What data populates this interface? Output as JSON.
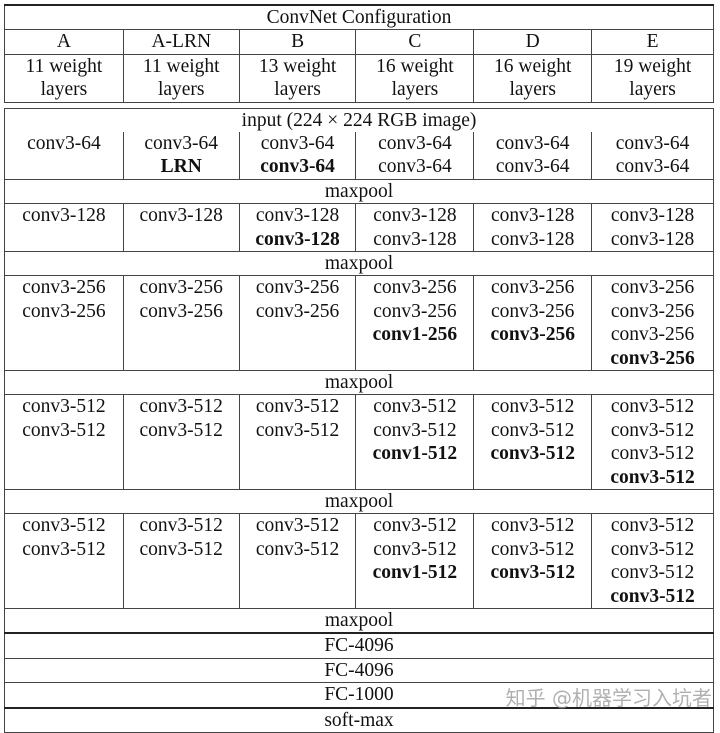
{
  "title": "ConvNet Configuration",
  "columns": [
    "A",
    "A-LRN",
    "B",
    "C",
    "D",
    "E"
  ],
  "depths": [
    [
      "11 weight",
      "layers"
    ],
    [
      "11 weight",
      "layers"
    ],
    [
      "13 weight",
      "layers"
    ],
    [
      "16 weight",
      "layers"
    ],
    [
      "16 weight",
      "layers"
    ],
    [
      "19 weight",
      "layers"
    ]
  ],
  "input": "input (224 × 224 RGB image)",
  "blocks": [
    {
      "lines": 2,
      "cells": [
        [
          {
            "t": "conv3-64"
          }
        ],
        [
          {
            "t": "conv3-64"
          },
          {
            "t": "LRN",
            "b": true
          }
        ],
        [
          {
            "t": "conv3-64"
          },
          {
            "t": "conv3-64",
            "b": true
          }
        ],
        [
          {
            "t": "conv3-64"
          },
          {
            "t": "conv3-64"
          }
        ],
        [
          {
            "t": "conv3-64"
          },
          {
            "t": "conv3-64"
          }
        ],
        [
          {
            "t": "conv3-64"
          },
          {
            "t": "conv3-64"
          }
        ]
      ],
      "pool": "maxpool"
    },
    {
      "lines": 2,
      "cells": [
        [
          {
            "t": "conv3-128"
          }
        ],
        [
          {
            "t": "conv3-128"
          }
        ],
        [
          {
            "t": "conv3-128"
          },
          {
            "t": "conv3-128",
            "b": true
          }
        ],
        [
          {
            "t": "conv3-128"
          },
          {
            "t": "conv3-128"
          }
        ],
        [
          {
            "t": "conv3-128"
          },
          {
            "t": "conv3-128"
          }
        ],
        [
          {
            "t": "conv3-128"
          },
          {
            "t": "conv3-128"
          }
        ]
      ],
      "pool": "maxpool"
    },
    {
      "lines": 4,
      "cells": [
        [
          {
            "t": "conv3-256"
          },
          {
            "t": "conv3-256"
          }
        ],
        [
          {
            "t": "conv3-256"
          },
          {
            "t": "conv3-256"
          }
        ],
        [
          {
            "t": "conv3-256"
          },
          {
            "t": "conv3-256"
          }
        ],
        [
          {
            "t": "conv3-256"
          },
          {
            "t": "conv3-256"
          },
          {
            "t": "conv1-256",
            "b": true
          }
        ],
        [
          {
            "t": "conv3-256"
          },
          {
            "t": "conv3-256"
          },
          {
            "t": "conv3-256",
            "b": true
          }
        ],
        [
          {
            "t": "conv3-256"
          },
          {
            "t": "conv3-256"
          },
          {
            "t": "conv3-256"
          },
          {
            "t": "conv3-256",
            "b": true
          }
        ]
      ],
      "pool": "maxpool"
    },
    {
      "lines": 4,
      "cells": [
        [
          {
            "t": "conv3-512"
          },
          {
            "t": "conv3-512"
          }
        ],
        [
          {
            "t": "conv3-512"
          },
          {
            "t": "conv3-512"
          }
        ],
        [
          {
            "t": "conv3-512"
          },
          {
            "t": "conv3-512"
          }
        ],
        [
          {
            "t": "conv3-512"
          },
          {
            "t": "conv3-512"
          },
          {
            "t": "conv1-512",
            "b": true
          }
        ],
        [
          {
            "t": "conv3-512"
          },
          {
            "t": "conv3-512"
          },
          {
            "t": "conv3-512",
            "b": true
          }
        ],
        [
          {
            "t": "conv3-512"
          },
          {
            "t": "conv3-512"
          },
          {
            "t": "conv3-512"
          },
          {
            "t": "conv3-512",
            "b": true
          }
        ]
      ],
      "pool": "maxpool"
    },
    {
      "lines": 4,
      "cells": [
        [
          {
            "t": "conv3-512"
          },
          {
            "t": "conv3-512"
          }
        ],
        [
          {
            "t": "conv3-512"
          },
          {
            "t": "conv3-512"
          }
        ],
        [
          {
            "t": "conv3-512"
          },
          {
            "t": "conv3-512"
          }
        ],
        [
          {
            "t": "conv3-512"
          },
          {
            "t": "conv3-512"
          },
          {
            "t": "conv1-512",
            "b": true
          }
        ],
        [
          {
            "t": "conv3-512"
          },
          {
            "t": "conv3-512"
          },
          {
            "t": "conv3-512",
            "b": true
          }
        ],
        [
          {
            "t": "conv3-512"
          },
          {
            "t": "conv3-512"
          },
          {
            "t": "conv3-512"
          },
          {
            "t": "conv3-512",
            "b": true
          }
        ]
      ],
      "pool": "maxpool"
    }
  ],
  "fc": [
    "FC-4096",
    "FC-4096",
    "FC-1000"
  ],
  "softmax": "soft-max",
  "watermark": "知乎 @机器学习入坑者"
}
